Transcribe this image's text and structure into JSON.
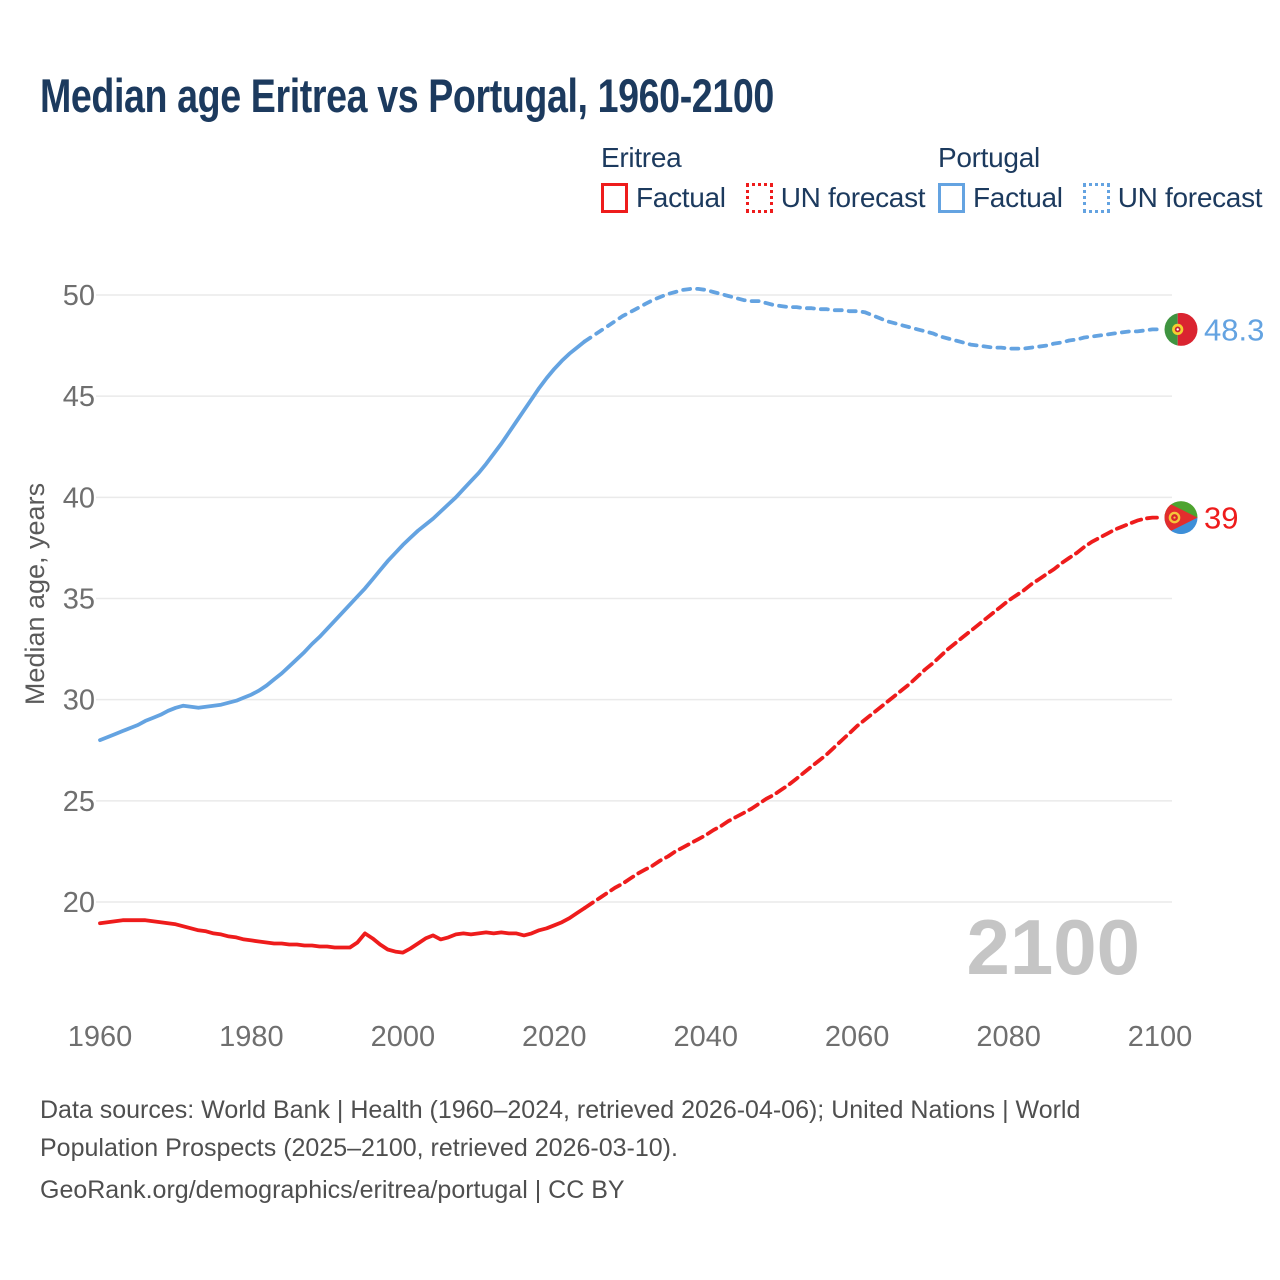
{
  "title": "Median age Eritrea vs Portugal, 1960-2100",
  "colors": {
    "eritrea_red": "#ee1c1c",
    "portugal_blue": "#64a3e1",
    "heading_navy": "#1c3a5e",
    "watermark_gray": "#c5c5c5"
  },
  "legend": {
    "groups": [
      {
        "name": "Eritrea",
        "color": "#ee1c1c",
        "items": [
          {
            "label": "Factual",
            "style": "solid"
          },
          {
            "label": "UN forecast",
            "style": "dotted"
          }
        ]
      },
      {
        "name": "Portugal",
        "color": "#64a3e1",
        "items": [
          {
            "label": "Factual",
            "style": "solid"
          },
          {
            "label": "UN forecast",
            "style": "dotted"
          }
        ]
      }
    ]
  },
  "chart_data": {
    "type": "line",
    "xlabel": "",
    "ylabel": "Median age, years",
    "watermark": "2100",
    "xticks": [
      1960,
      1980,
      2000,
      2020,
      2040,
      2060,
      2080,
      2100
    ],
    "yticks": [
      20,
      25,
      30,
      35,
      40,
      45,
      50
    ],
    "xlim": [
      1960,
      2100
    ],
    "ylim": [
      15.5,
      52
    ],
    "grid": "horizontal",
    "series": [
      {
        "id": "portugal-factual",
        "name": "Portugal Factual",
        "color": "#64a3e1",
        "style": "solid",
        "points": [
          [
            1960,
            28.0
          ],
          [
            1961,
            28.15
          ],
          [
            1962,
            28.3
          ],
          [
            1963,
            28.45
          ],
          [
            1964,
            28.6
          ],
          [
            1965,
            28.75
          ],
          [
            1966,
            28.95
          ],
          [
            1967,
            29.1
          ],
          [
            1968,
            29.25
          ],
          [
            1969,
            29.45
          ],
          [
            1970,
            29.6
          ],
          [
            1971,
            29.7
          ],
          [
            1972,
            29.65
          ],
          [
            1973,
            29.6
          ],
          [
            1974,
            29.65
          ],
          [
            1975,
            29.7
          ],
          [
            1976,
            29.75
          ],
          [
            1977,
            29.85
          ],
          [
            1978,
            29.95
          ],
          [
            1979,
            30.1
          ],
          [
            1980,
            30.25
          ],
          [
            1981,
            30.45
          ],
          [
            1982,
            30.7
          ],
          [
            1983,
            31.0
          ],
          [
            1984,
            31.3
          ],
          [
            1985,
            31.65
          ],
          [
            1986,
            32.0
          ],
          [
            1987,
            32.35
          ],
          [
            1988,
            32.75
          ],
          [
            1989,
            33.1
          ],
          [
            1990,
            33.5
          ],
          [
            1991,
            33.9
          ],
          [
            1992,
            34.3
          ],
          [
            1993,
            34.7
          ],
          [
            1994,
            35.1
          ],
          [
            1995,
            35.5
          ],
          [
            1996,
            35.95
          ],
          [
            1997,
            36.4
          ],
          [
            1998,
            36.85
          ],
          [
            1999,
            37.25
          ],
          [
            2000,
            37.65
          ],
          [
            2001,
            38.0
          ],
          [
            2002,
            38.35
          ],
          [
            2003,
            38.65
          ],
          [
            2004,
            38.95
          ],
          [
            2005,
            39.3
          ],
          [
            2006,
            39.65
          ],
          [
            2007,
            40.0
          ],
          [
            2008,
            40.4
          ],
          [
            2009,
            40.8
          ],
          [
            2010,
            41.2
          ],
          [
            2011,
            41.65
          ],
          [
            2012,
            42.15
          ],
          [
            2013,
            42.65
          ],
          [
            2014,
            43.2
          ],
          [
            2015,
            43.75
          ],
          [
            2016,
            44.3
          ],
          [
            2017,
            44.85
          ],
          [
            2018,
            45.4
          ],
          [
            2019,
            45.9
          ],
          [
            2020,
            46.35
          ],
          [
            2021,
            46.75
          ],
          [
            2022,
            47.1
          ],
          [
            2023,
            47.4
          ],
          [
            2024,
            47.7
          ]
        ]
      },
      {
        "id": "portugal-forecast",
        "name": "Portugal UN forecast",
        "color": "#64a3e1",
        "style": "dashed",
        "end_label": "48.3",
        "marker": "portugal-flag",
        "points": [
          [
            2024,
            47.7
          ],
          [
            2025,
            47.95
          ],
          [
            2026,
            48.2
          ],
          [
            2027,
            48.45
          ],
          [
            2028,
            48.7
          ],
          [
            2029,
            48.95
          ],
          [
            2030,
            49.15
          ],
          [
            2031,
            49.35
          ],
          [
            2032,
            49.55
          ],
          [
            2033,
            49.75
          ],
          [
            2034,
            49.9
          ],
          [
            2035,
            50.05
          ],
          [
            2036,
            50.15
          ],
          [
            2037,
            50.25
          ],
          [
            2038,
            50.3
          ],
          [
            2039,
            50.3
          ],
          [
            2040,
            50.25
          ],
          [
            2041,
            50.15
          ],
          [
            2042,
            50.05
          ],
          [
            2043,
            49.95
          ],
          [
            2044,
            49.85
          ],
          [
            2045,
            49.75
          ],
          [
            2046,
            49.7
          ],
          [
            2047,
            49.7
          ],
          [
            2048,
            49.6
          ],
          [
            2049,
            49.5
          ],
          [
            2050,
            49.45
          ],
          [
            2051,
            49.4
          ],
          [
            2052,
            49.4
          ],
          [
            2053,
            49.35
          ],
          [
            2054,
            49.35
          ],
          [
            2055,
            49.3
          ],
          [
            2056,
            49.3
          ],
          [
            2057,
            49.25
          ],
          [
            2058,
            49.25
          ],
          [
            2059,
            49.2
          ],
          [
            2060,
            49.2
          ],
          [
            2061,
            49.15
          ],
          [
            2062,
            49.0
          ],
          [
            2063,
            48.85
          ],
          [
            2064,
            48.7
          ],
          [
            2065,
            48.6
          ],
          [
            2066,
            48.5
          ],
          [
            2067,
            48.4
          ],
          [
            2068,
            48.3
          ],
          [
            2069,
            48.2
          ],
          [
            2070,
            48.1
          ],
          [
            2071,
            47.95
          ],
          [
            2072,
            47.85
          ],
          [
            2073,
            47.75
          ],
          [
            2074,
            47.65
          ],
          [
            2075,
            47.55
          ],
          [
            2076,
            47.5
          ],
          [
            2077,
            47.45
          ],
          [
            2078,
            47.4
          ],
          [
            2079,
            47.4
          ],
          [
            2080,
            47.35
          ],
          [
            2081,
            47.35
          ],
          [
            2082,
            47.35
          ],
          [
            2083,
            47.4
          ],
          [
            2084,
            47.45
          ],
          [
            2085,
            47.5
          ],
          [
            2086,
            47.6
          ],
          [
            2087,
            47.65
          ],
          [
            2088,
            47.75
          ],
          [
            2089,
            47.8
          ],
          [
            2090,
            47.9
          ],
          [
            2091,
            47.95
          ],
          [
            2092,
            48.0
          ],
          [
            2093,
            48.05
          ],
          [
            2094,
            48.1
          ],
          [
            2095,
            48.15
          ],
          [
            2096,
            48.2
          ],
          [
            2097,
            48.2
          ],
          [
            2098,
            48.25
          ],
          [
            2099,
            48.3
          ],
          [
            2100,
            48.3
          ]
        ]
      },
      {
        "id": "eritrea-factual",
        "name": "Eritrea Factual",
        "color": "#ee1c1c",
        "style": "solid",
        "points": [
          [
            1960,
            18.95
          ],
          [
            1961,
            19.0
          ],
          [
            1962,
            19.05
          ],
          [
            1963,
            19.1
          ],
          [
            1964,
            19.1
          ],
          [
            1965,
            19.1
          ],
          [
            1966,
            19.1
          ],
          [
            1967,
            19.05
          ],
          [
            1968,
            19.0
          ],
          [
            1969,
            18.95
          ],
          [
            1970,
            18.9
          ],
          [
            1971,
            18.8
          ],
          [
            1972,
            18.7
          ],
          [
            1973,
            18.6
          ],
          [
            1974,
            18.55
          ],
          [
            1975,
            18.45
          ],
          [
            1976,
            18.4
          ],
          [
            1977,
            18.3
          ],
          [
            1978,
            18.25
          ],
          [
            1979,
            18.15
          ],
          [
            1980,
            18.1
          ],
          [
            1981,
            18.05
          ],
          [
            1982,
            18.0
          ],
          [
            1983,
            17.95
          ],
          [
            1984,
            17.95
          ],
          [
            1985,
            17.9
          ],
          [
            1986,
            17.9
          ],
          [
            1987,
            17.85
          ],
          [
            1988,
            17.85
          ],
          [
            1989,
            17.8
          ],
          [
            1990,
            17.8
          ],
          [
            1991,
            17.75
          ],
          [
            1992,
            17.75
          ],
          [
            1993,
            17.75
          ],
          [
            1994,
            18.0
          ],
          [
            1995,
            18.45
          ],
          [
            1996,
            18.2
          ],
          [
            1997,
            17.9
          ],
          [
            1998,
            17.65
          ],
          [
            1999,
            17.55
          ],
          [
            2000,
            17.5
          ],
          [
            2001,
            17.7
          ],
          [
            2002,
            17.95
          ],
          [
            2003,
            18.2
          ],
          [
            2004,
            18.35
          ],
          [
            2005,
            18.15
          ],
          [
            2006,
            18.25
          ],
          [
            2007,
            18.4
          ],
          [
            2008,
            18.45
          ],
          [
            2009,
            18.4
          ],
          [
            2010,
            18.45
          ],
          [
            2011,
            18.5
          ],
          [
            2012,
            18.45
          ],
          [
            2013,
            18.5
          ],
          [
            2014,
            18.45
          ],
          [
            2015,
            18.45
          ],
          [
            2016,
            18.35
          ],
          [
            2017,
            18.45
          ],
          [
            2018,
            18.6
          ],
          [
            2019,
            18.7
          ],
          [
            2020,
            18.85
          ],
          [
            2021,
            19.0
          ],
          [
            2022,
            19.2
          ],
          [
            2023,
            19.45
          ],
          [
            2024,
            19.7
          ]
        ]
      },
      {
        "id": "eritrea-forecast",
        "name": "Eritrea UN forecast",
        "color": "#ee1c1c",
        "style": "dashed",
        "end_label": "39",
        "marker": "eritrea-flag",
        "points": [
          [
            2024,
            19.7
          ],
          [
            2025,
            19.95
          ],
          [
            2026,
            20.2
          ],
          [
            2027,
            20.45
          ],
          [
            2028,
            20.7
          ],
          [
            2029,
            20.9
          ],
          [
            2030,
            21.15
          ],
          [
            2031,
            21.4
          ],
          [
            2032,
            21.6
          ],
          [
            2033,
            21.8
          ],
          [
            2034,
            22.05
          ],
          [
            2035,
            22.25
          ],
          [
            2036,
            22.5
          ],
          [
            2037,
            22.7
          ],
          [
            2038,
            22.9
          ],
          [
            2039,
            23.1
          ],
          [
            2040,
            23.3
          ],
          [
            2041,
            23.55
          ],
          [
            2042,
            23.75
          ],
          [
            2043,
            24.0
          ],
          [
            2044,
            24.2
          ],
          [
            2045,
            24.4
          ],
          [
            2046,
            24.6
          ],
          [
            2047,
            24.85
          ],
          [
            2048,
            25.1
          ],
          [
            2049,
            25.3
          ],
          [
            2050,
            25.55
          ],
          [
            2051,
            25.8
          ],
          [
            2052,
            26.1
          ],
          [
            2053,
            26.4
          ],
          [
            2054,
            26.7
          ],
          [
            2055,
            27.0
          ],
          [
            2056,
            27.3
          ],
          [
            2057,
            27.65
          ],
          [
            2058,
            28.0
          ],
          [
            2059,
            28.35
          ],
          [
            2060,
            28.7
          ],
          [
            2061,
            29.0
          ],
          [
            2062,
            29.3
          ],
          [
            2063,
            29.6
          ],
          [
            2064,
            29.9
          ],
          [
            2065,
            30.2
          ],
          [
            2066,
            30.5
          ],
          [
            2067,
            30.8
          ],
          [
            2068,
            31.15
          ],
          [
            2069,
            31.5
          ],
          [
            2070,
            31.8
          ],
          [
            2071,
            32.15
          ],
          [
            2072,
            32.5
          ],
          [
            2073,
            32.8
          ],
          [
            2074,
            33.1
          ],
          [
            2075,
            33.4
          ],
          [
            2076,
            33.7
          ],
          [
            2077,
            34.0
          ],
          [
            2078,
            34.3
          ],
          [
            2079,
            34.6
          ],
          [
            2080,
            34.9
          ],
          [
            2081,
            35.15
          ],
          [
            2082,
            35.4
          ],
          [
            2083,
            35.7
          ],
          [
            2084,
            35.95
          ],
          [
            2085,
            36.2
          ],
          [
            2086,
            36.45
          ],
          [
            2087,
            36.75
          ],
          [
            2088,
            37.0
          ],
          [
            2089,
            37.25
          ],
          [
            2090,
            37.55
          ],
          [
            2091,
            37.8
          ],
          [
            2092,
            38.0
          ],
          [
            2093,
            38.2
          ],
          [
            2094,
            38.4
          ],
          [
            2095,
            38.55
          ],
          [
            2096,
            38.7
          ],
          [
            2097,
            38.85
          ],
          [
            2098,
            38.95
          ],
          [
            2099,
            39.0
          ],
          [
            2100,
            39.0
          ]
        ]
      }
    ]
  },
  "footer": {
    "lines": [
      "Data sources: World Bank | Health (1960–2024, retrieved 2026-04-06); United Nations | World",
      "Population Prospects (2025–2100, retrieved 2026-03-10).",
      "GeoRank.org/demographics/eritrea/portugal | CC BY"
    ]
  }
}
